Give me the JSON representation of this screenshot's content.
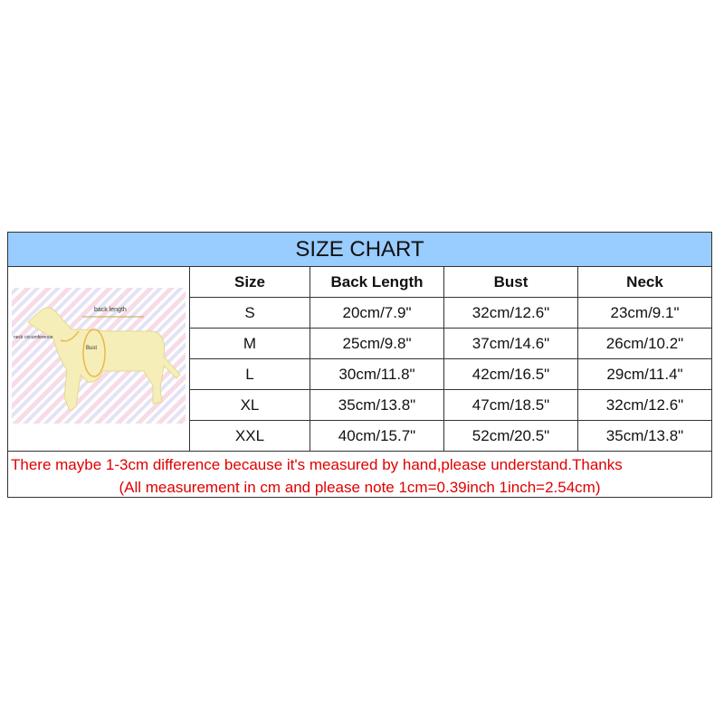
{
  "title": "SIZE CHART",
  "columns": [
    "Size",
    "Back Length",
    "Bust",
    "Neck"
  ],
  "rows": [
    [
      "S",
      "20cm/7.9\"",
      "32cm/12.6\"",
      "23cm/9.1\""
    ],
    [
      "M",
      "25cm/9.8\"",
      "37cm/14.6\"",
      "26cm/10.2\""
    ],
    [
      "L",
      "30cm/11.8\"",
      "42cm/16.5\"",
      "29cm/11.4\""
    ],
    [
      "XL",
      "35cm/13.8\"",
      "47cm/18.5\"",
      "32cm/12.6\""
    ],
    [
      "XXL",
      "40cm/15.7\"",
      "52cm/20.5\"",
      "35cm/13.8\""
    ]
  ],
  "diagram": {
    "back_label": "back length",
    "neck_label": "neck circumference",
    "bust_label": "Bust"
  },
  "notes": [
    "There maybe 1-3cm difference because it's measured by hand,please understand.Thanks",
    "(All measurement in cm and please note 1cm=0.39inch 1inch=2.54cm)"
  ],
  "colors": {
    "header_bg": "#99ccff",
    "note_text": "#e00000"
  }
}
